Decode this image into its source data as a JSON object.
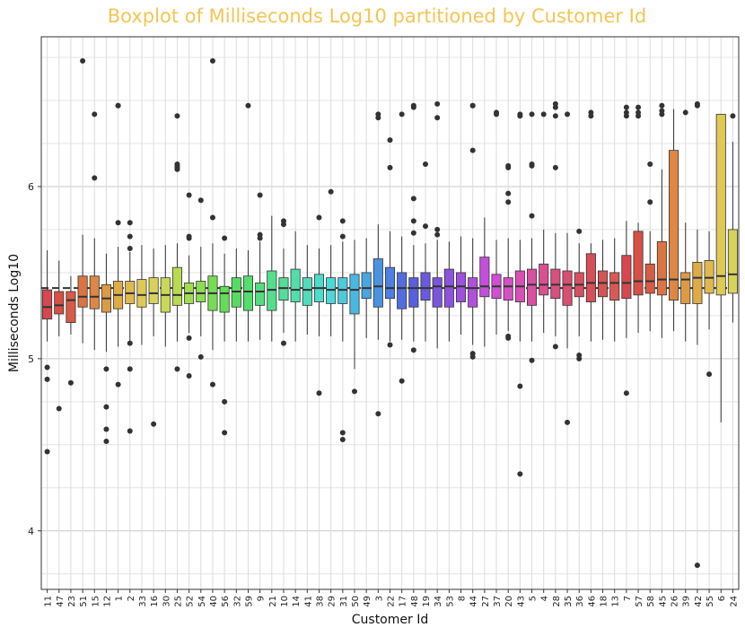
{
  "chart_data": {
    "type": "boxplot",
    "title": "Boxplot of Milliseconds Log10 partitioned by Customer Id",
    "xlabel": "Customer Id",
    "ylabel": "Milliseconds Log10",
    "ylim": [
      3.66,
      6.87
    ],
    "yticks": [
      4,
      5,
      6
    ],
    "grid": true,
    "overall_median": 5.41,
    "categories": [
      "11",
      "47",
      "23",
      "51",
      "15",
      "12",
      "1",
      "2",
      "33",
      "16",
      "30",
      "25",
      "52",
      "54",
      "40",
      "56",
      "32",
      "59",
      "9",
      "21",
      "10",
      "14",
      "41",
      "38",
      "29",
      "31",
      "50",
      "49",
      "3",
      "22",
      "17",
      "48",
      "19",
      "34",
      "53",
      "8",
      "44",
      "27",
      "37",
      "20",
      "43",
      "5",
      "4",
      "28",
      "35",
      "36",
      "46",
      "18",
      "13",
      "7",
      "57",
      "58",
      "45",
      "26",
      "39",
      "42",
      "55",
      "6",
      "24"
    ],
    "colors": [
      "#d6474f",
      "#d74f45",
      "#d65c45",
      "#db7444",
      "#de8644",
      "#dd9a45",
      "#deab46",
      "#e0b94d",
      "#dfc955",
      "#d9d25a",
      "#cad858",
      "#b7da52",
      "#a3dc51",
      "#8cdd51",
      "#76dd52",
      "#62dd55",
      "#56dd5f",
      "#53df6d",
      "#52de7c",
      "#53de8b",
      "#52de9a",
      "#52deab",
      "#50dcba",
      "#4ddbca",
      "#4cd7d8",
      "#4cc9de",
      "#4bb7e0",
      "#4aa5e0",
      "#4b92e0",
      "#4d7fe0",
      "#526cdf",
      "#5a5fdd",
      "#6a59dd",
      "#7b55dd",
      "#8d52dd",
      "#9f50dd",
      "#b24fdc",
      "#c34fda",
      "#d04fd3",
      "#d64fc4",
      "#d94fb3",
      "#d94fa2",
      "#da4f91",
      "#d94f80",
      "#d84f71",
      "#d84f63",
      "#d65058",
      "#d75456",
      "#d85a55",
      "#d6474f",
      "#d74f45",
      "#d65c45",
      "#db7444",
      "#de8644",
      "#dd9a45",
      "#deab46",
      "#e0b94d",
      "#dfc955",
      "#d9d25a"
    ],
    "boxes": [
      {
        "q1": 5.23,
        "median": 5.3,
        "q3": 5.4,
        "lo": 5.1,
        "hi": 5.63,
        "outliers": [
          4.95,
          4.88,
          4.46
        ]
      },
      {
        "q1": 5.26,
        "median": 5.31,
        "q3": 5.39,
        "lo": 5.13,
        "hi": 5.57,
        "outliers": [
          4.71
        ]
      },
      {
        "q1": 5.21,
        "median": 5.34,
        "q3": 5.39,
        "lo": 5.14,
        "hi": 5.48,
        "outliers": [
          4.86
        ]
      },
      {
        "q1": 5.3,
        "median": 5.36,
        "q3": 5.48,
        "lo": 5.09,
        "hi": 5.72,
        "outliers": [
          6.73
        ]
      },
      {
        "q1": 5.29,
        "median": 5.36,
        "q3": 5.48,
        "lo": 5.05,
        "hi": 5.7,
        "outliers": [
          6.42,
          6.05
        ]
      },
      {
        "q1": 5.27,
        "median": 5.35,
        "q3": 5.43,
        "lo": 5.04,
        "hi": 5.61,
        "outliers": [
          4.94,
          4.72,
          4.59,
          4.52
        ]
      },
      {
        "q1": 5.29,
        "median": 5.37,
        "q3": 5.45,
        "lo": 5.07,
        "hi": 5.65,
        "outliers": [
          6.47,
          6.47,
          5.79,
          4.85
        ]
      },
      {
        "q1": 5.32,
        "median": 5.38,
        "q3": 5.45,
        "lo": 5.1,
        "hi": 5.62,
        "outliers": [
          5.79,
          5.71,
          5.64,
          5.09,
          4.94,
          4.58
        ]
      },
      {
        "q1": 5.3,
        "median": 5.37,
        "q3": 5.46,
        "lo": 5.08,
        "hi": 5.66,
        "outliers": []
      },
      {
        "q1": 5.32,
        "median": 5.38,
        "q3": 5.47,
        "lo": 5.13,
        "hi": 5.64,
        "outliers": [
          4.62
        ]
      },
      {
        "q1": 5.27,
        "median": 5.37,
        "q3": 5.47,
        "lo": 5.07,
        "hi": 5.66,
        "outliers": []
      },
      {
        "q1": 5.31,
        "median": 5.37,
        "q3": 5.53,
        "lo": 5.1,
        "hi": 5.67,
        "outliers": [
          6.41,
          6.13,
          6.12,
          6.11,
          6.1,
          4.94
        ]
      },
      {
        "q1": 5.32,
        "median": 5.38,
        "q3": 5.44,
        "lo": 5.15,
        "hi": 5.6,
        "outliers": [
          5.95,
          5.71,
          5.7,
          5.12,
          4.9
        ]
      },
      {
        "q1": 5.33,
        "median": 5.38,
        "q3": 5.45,
        "lo": 5.13,
        "hi": 5.65,
        "outliers": [
          5.92,
          5.01
        ]
      },
      {
        "q1": 5.28,
        "median": 5.38,
        "q3": 5.48,
        "lo": 5.05,
        "hi": 5.67,
        "outliers": [
          6.73,
          5.82,
          4.85
        ]
      },
      {
        "q1": 5.27,
        "median": 5.38,
        "q3": 5.42,
        "lo": 5.1,
        "hi": 5.61,
        "outliers": [
          5.7,
          4.75,
          4.57
        ]
      },
      {
        "q1": 5.3,
        "median": 5.39,
        "q3": 5.47,
        "lo": 5.1,
        "hi": 5.64,
        "outliers": []
      },
      {
        "q1": 5.28,
        "median": 5.39,
        "q3": 5.48,
        "lo": 5.1,
        "hi": 5.63,
        "outliers": [
          6.47
        ]
      },
      {
        "q1": 5.31,
        "median": 5.39,
        "q3": 5.44,
        "lo": 5.11,
        "hi": 5.68,
        "outliers": [
          5.95,
          5.72,
          5.7
        ]
      },
      {
        "q1": 5.28,
        "median": 5.4,
        "q3": 5.51,
        "lo": 5.1,
        "hi": 5.83,
        "outliers": []
      },
      {
        "q1": 5.34,
        "median": 5.41,
        "q3": 5.47,
        "lo": 5.15,
        "hi": 5.64,
        "outliers": [
          5.8,
          5.78,
          5.09
        ]
      },
      {
        "q1": 5.33,
        "median": 5.4,
        "q3": 5.52,
        "lo": 5.1,
        "hi": 5.74,
        "outliers": []
      },
      {
        "q1": 5.31,
        "median": 5.4,
        "q3": 5.47,
        "lo": 5.14,
        "hi": 5.66,
        "outliers": []
      },
      {
        "q1": 5.33,
        "median": 5.41,
        "q3": 5.49,
        "lo": 5.13,
        "hi": 5.64,
        "outliers": [
          5.82,
          4.8
        ]
      },
      {
        "q1": 5.32,
        "median": 5.4,
        "q3": 5.47,
        "lo": 5.13,
        "hi": 5.66,
        "outliers": [
          5.97
        ]
      },
      {
        "q1": 5.32,
        "median": 5.4,
        "q3": 5.47,
        "lo": 5.1,
        "hi": 5.68,
        "outliers": [
          5.8,
          5.71,
          4.57,
          4.53
        ]
      },
      {
        "q1": 5.26,
        "median": 5.4,
        "q3": 5.49,
        "lo": 4.94,
        "hi": 5.69,
        "outliers": [
          4.81
        ]
      },
      {
        "q1": 5.35,
        "median": 5.41,
        "q3": 5.5,
        "lo": 5.12,
        "hi": 5.7,
        "outliers": []
      },
      {
        "q1": 5.3,
        "median": 5.42,
        "q3": 5.58,
        "lo": 5.11,
        "hi": 5.78,
        "outliers": [
          6.42,
          6.4,
          4.68
        ]
      },
      {
        "q1": 5.35,
        "median": 5.41,
        "q3": 5.53,
        "lo": 5.1,
        "hi": 5.74,
        "outliers": [
          6.27,
          6.11,
          5.08
        ]
      },
      {
        "q1": 5.29,
        "median": 5.41,
        "q3": 5.5,
        "lo": 5.11,
        "hi": 5.71,
        "outliers": [
          6.42,
          4.87
        ]
      },
      {
        "q1": 5.3,
        "median": 5.41,
        "q3": 5.47,
        "lo": 5.1,
        "hi": 5.66,
        "outliers": [
          6.47,
          6.46,
          5.93,
          5.8,
          5.73,
          5.05
        ]
      },
      {
        "q1": 5.34,
        "median": 5.41,
        "q3": 5.5,
        "lo": 5.1,
        "hi": 5.67,
        "outliers": [
          6.13,
          5.77
        ]
      },
      {
        "q1": 5.3,
        "median": 5.42,
        "q3": 5.47,
        "lo": 5.06,
        "hi": 5.69,
        "outliers": [
          6.48,
          6.4,
          5.75,
          5.72
        ]
      },
      {
        "q1": 5.3,
        "median": 5.42,
        "q3": 5.52,
        "lo": 5.1,
        "hi": 5.68,
        "outliers": []
      },
      {
        "q1": 5.33,
        "median": 5.42,
        "q3": 5.5,
        "lo": 5.14,
        "hi": 5.71,
        "outliers": []
      },
      {
        "q1": 5.3,
        "median": 5.41,
        "q3": 5.47,
        "lo": 5.08,
        "hi": 5.7,
        "outliers": [
          6.47,
          6.47,
          6.21,
          5.03,
          5.01
        ]
      },
      {
        "q1": 5.36,
        "median": 5.42,
        "q3": 5.59,
        "lo": 5.07,
        "hi": 5.82,
        "outliers": []
      },
      {
        "q1": 5.35,
        "median": 5.42,
        "q3": 5.49,
        "lo": 5.14,
        "hi": 5.69,
        "outliers": [
          6.43,
          6.42
        ]
      },
      {
        "q1": 5.34,
        "median": 5.42,
        "q3": 5.47,
        "lo": 5.16,
        "hi": 5.7,
        "outliers": [
          6.12,
          6.11,
          5.96,
          5.91,
          5.13,
          5.12
        ]
      },
      {
        "q1": 5.33,
        "median": 5.42,
        "q3": 5.51,
        "lo": 5.1,
        "hi": 5.69,
        "outliers": [
          6.42,
          6.41,
          4.84,
          4.33
        ]
      },
      {
        "q1": 5.31,
        "median": 5.43,
        "q3": 5.52,
        "lo": 5.1,
        "hi": 5.7,
        "outliers": [
          6.42,
          6.13,
          6.12,
          5.83,
          4.99
        ]
      },
      {
        "q1": 5.37,
        "median": 5.43,
        "q3": 5.55,
        "lo": 5.15,
        "hi": 5.75,
        "outliers": [
          6.42
        ]
      },
      {
        "q1": 5.35,
        "median": 5.43,
        "q3": 5.52,
        "lo": 5.13,
        "hi": 5.73,
        "outliers": [
          6.48,
          6.46,
          6.41,
          6.11,
          5.07
        ]
      },
      {
        "q1": 5.31,
        "median": 5.43,
        "q3": 5.51,
        "lo": 5.06,
        "hi": 5.73,
        "outliers": [
          6.42,
          4.63
        ]
      },
      {
        "q1": 5.36,
        "median": 5.43,
        "q3": 5.5,
        "lo": 5.13,
        "hi": 5.67,
        "outliers": [
          5.74,
          5.02,
          5.0
        ]
      },
      {
        "q1": 5.33,
        "median": 5.44,
        "q3": 5.61,
        "lo": 5.1,
        "hi": 5.67,
        "outliers": [
          6.43,
          6.41
        ]
      },
      {
        "q1": 5.36,
        "median": 5.44,
        "q3": 5.51,
        "lo": 5.11,
        "hi": 5.69,
        "outliers": []
      },
      {
        "q1": 5.34,
        "median": 5.44,
        "q3": 5.5,
        "lo": 5.1,
        "hi": 5.7,
        "outliers": []
      },
      {
        "q1": 5.35,
        "median": 5.44,
        "q3": 5.6,
        "lo": 5.12,
        "hi": 5.8,
        "outliers": [
          6.46,
          6.43,
          6.41,
          4.8
        ]
      },
      {
        "q1": 5.37,
        "median": 5.45,
        "q3": 5.74,
        "lo": 5.15,
        "hi": 5.79,
        "outliers": [
          6.46,
          6.43,
          6.41
        ]
      },
      {
        "q1": 5.38,
        "median": 5.45,
        "q3": 5.55,
        "lo": 5.16,
        "hi": 5.74,
        "outliers": [
          6.13,
          5.91
        ]
      },
      {
        "q1": 5.37,
        "median": 5.46,
        "q3": 5.68,
        "lo": 5.12,
        "hi": 6.1,
        "outliers": [
          6.47,
          6.44,
          6.42
        ]
      },
      {
        "q1": 5.34,
        "median": 5.46,
        "q3": 6.21,
        "lo": 5.16,
        "hi": 6.45,
        "outliers": []
      },
      {
        "q1": 5.32,
        "median": 5.46,
        "q3": 5.5,
        "lo": 5.1,
        "hi": 5.79,
        "outliers": [
          6.43
        ]
      },
      {
        "q1": 5.32,
        "median": 5.47,
        "q3": 5.56,
        "lo": 5.08,
        "hi": 5.75,
        "outliers": [
          6.48,
          6.47,
          3.8
        ]
      },
      {
        "q1": 5.38,
        "median": 5.47,
        "q3": 5.57,
        "lo": 5.17,
        "hi": 5.74,
        "outliers": [
          4.91
        ]
      },
      {
        "q1": 5.37,
        "median": 5.48,
        "q3": 6.42,
        "lo": 4.63,
        "hi": 6.42,
        "outliers": []
      },
      {
        "q1": 5.38,
        "median": 5.49,
        "q3": 5.75,
        "lo": 5.21,
        "hi": 6.26,
        "outliers": [
          6.41
        ]
      }
    ]
  }
}
